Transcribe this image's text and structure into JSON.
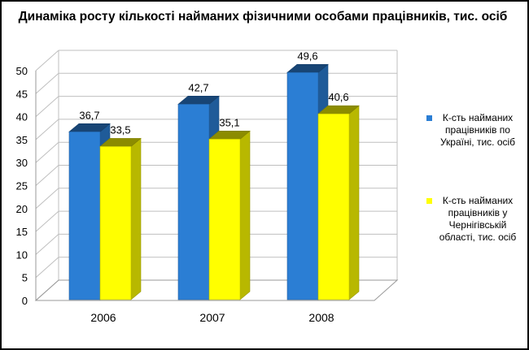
{
  "chart_data": {
    "type": "bar",
    "title": "Динаміка росту кількості найманих фізичними особами працівників, тис. осіб",
    "categories": [
      "2006",
      "2007",
      "2008"
    ],
    "series": [
      {
        "name": "К-сть найманих працівників по Україні, тис. осіб",
        "values": [
          36.7,
          42.7,
          49.6
        ],
        "color": "#2b7ed4",
        "labels": [
          "36,7",
          "42,7",
          "49,6"
        ]
      },
      {
        "name": "К-сть найманих працівників у Чернігівській області, тис. осіб",
        "values": [
          33.5,
          35.1,
          40.6
        ],
        "color": "#ffff00",
        "labels": [
          "33,5",
          "35,1",
          "40,6"
        ]
      }
    ],
    "ylim": [
      0,
      50
    ],
    "yticks": [
      "0",
      "5",
      "10",
      "15",
      "20",
      "25",
      "30",
      "35",
      "40",
      "45",
      "50"
    ],
    "grid": true,
    "legend": "right",
    "style": "3d-bar"
  }
}
